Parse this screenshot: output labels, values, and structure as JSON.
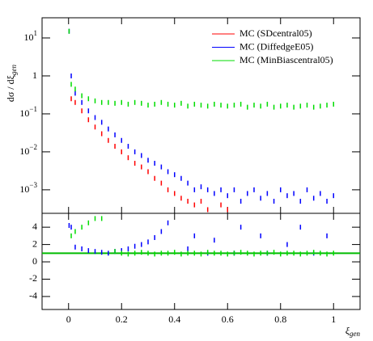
{
  "chart_data": [
    {
      "type": "scatter",
      "log_y": true,
      "y_label": {
        "text": "dσ / dξ",
        "subscript": "gen"
      },
      "legend": "top-right",
      "xlim": [
        -0.1,
        1.1
      ],
      "ylim": [
        0.00024,
        34
      ],
      "yticks": [
        {
          "value": 10,
          "label": "10",
          "exponent": "1"
        },
        {
          "value": 1,
          "label": "1"
        },
        {
          "value": 0.1,
          "label": "10",
          "exponent": "−1"
        },
        {
          "value": 0.01,
          "label": "10",
          "exponent": "−2"
        },
        {
          "value": 0.001,
          "label": "10",
          "exponent": "−3"
        }
      ],
      "x": [
        0.002,
        0.01,
        0.025,
        0.05,
        0.075,
        0.1,
        0.125,
        0.15,
        0.175,
        0.2,
        0.225,
        0.25,
        0.275,
        0.3,
        0.325,
        0.35,
        0.375,
        0.4,
        0.425,
        0.45,
        0.475,
        0.5,
        0.525,
        0.55,
        0.575,
        0.6,
        0.625,
        0.65,
        0.675,
        0.7,
        0.725,
        0.75,
        0.775,
        0.8,
        0.825,
        0.85,
        0.875,
        0.9,
        0.925,
        0.95,
        0.975,
        1.0
      ],
      "series": [
        {
          "name": "MC (SDcentral05)",
          "color": "#ff0000",
          "values": [
            null,
            0.25,
            0.2,
            0.12,
            0.07,
            0.045,
            0.03,
            0.02,
            0.014,
            0.01,
            0.007,
            0.005,
            0.004,
            0.003,
            0.002,
            0.0015,
            0.001,
            0.0008,
            0.0006,
            0.0005,
            0.0004,
            0.0005,
            0.0003,
            null,
            0.0004,
            0.0003,
            null,
            null,
            null,
            null,
            null,
            null,
            null,
            null,
            null,
            null,
            null,
            null,
            null,
            null,
            null,
            null
          ]
        },
        {
          "name": "MC (DiffedgeE05)",
          "color": "#0000ff",
          "values": [
            15,
            1.0,
            0.35,
            0.2,
            0.12,
            0.08,
            0.06,
            0.04,
            0.028,
            0.02,
            0.014,
            0.01,
            0.008,
            0.006,
            0.005,
            0.004,
            0.003,
            0.0025,
            0.002,
            0.0015,
            0.001,
            0.0012,
            0.001,
            0.0008,
            0.001,
            0.0007,
            0.001,
            0.0005,
            0.0008,
            0.001,
            0.0006,
            0.0008,
            0.0005,
            0.001,
            0.0007,
            0.0008,
            0.0005,
            0.001,
            0.0006,
            0.0008,
            0.0005,
            0.0007
          ]
        },
        {
          "name": "MC (MinBiascentral05)",
          "color": "#00dd00",
          "values": [
            15,
            0.6,
            0.45,
            0.3,
            0.25,
            0.22,
            0.2,
            0.2,
            0.19,
            0.2,
            0.18,
            0.2,
            0.19,
            0.17,
            0.18,
            0.2,
            0.18,
            0.17,
            0.19,
            0.16,
            0.18,
            0.17,
            0.16,
            0.18,
            0.17,
            0.16,
            0.17,
            0.18,
            0.15,
            0.17,
            0.16,
            0.18,
            0.15,
            0.16,
            0.17,
            0.15,
            0.16,
            0.17,
            0.15,
            0.16,
            0.17,
            0.18
          ]
        }
      ]
    },
    {
      "type": "scatter",
      "x_label": {
        "text": "ξ",
        "subscript": "gen"
      },
      "xlim": [
        -0.1,
        1.1
      ],
      "ylim": [
        -5.5,
        5.6
      ],
      "xticks": [
        0,
        0.2,
        0.4,
        0.6,
        0.8,
        1
      ],
      "yticks": [
        4,
        2,
        0,
        -2,
        -4
      ],
      "reference_line": {
        "value": 1,
        "color": "#00bb00"
      },
      "x": [
        0.002,
        0.01,
        0.025,
        0.05,
        0.075,
        0.1,
        0.125,
        0.15,
        0.175,
        0.2,
        0.225,
        0.25,
        0.275,
        0.3,
        0.325,
        0.35,
        0.375,
        0.4,
        0.425,
        0.45,
        0.475,
        0.5,
        0.525,
        0.55,
        0.575,
        0.6,
        0.625,
        0.65,
        0.675,
        0.7,
        0.725,
        0.75,
        0.775,
        0.8,
        0.825,
        0.85,
        0.875,
        0.9,
        0.925,
        0.95,
        0.975,
        1.0
      ],
      "series": [
        {
          "color": "#0000ff",
          "values": [
            4.2,
            4,
            1.7,
            1.5,
            1.3,
            1.2,
            1.1,
            1.0,
            1.2,
            1.3,
            1.5,
            1.8,
            2,
            2.3,
            2.8,
            3.5,
            4.5,
            null,
            null,
            1.5,
            3,
            null,
            1,
            2.5,
            null,
            null,
            1,
            4,
            null,
            null,
            3,
            1,
            null,
            null,
            2,
            null,
            4,
            null,
            1,
            null,
            3,
            null
          ]
        },
        {
          "color": "#00dd00",
          "values": [
            null,
            3,
            3.5,
            4,
            4.5,
            5,
            5,
            null,
            1.2,
            1.0,
            0.9,
            1.0,
            1.1,
            1.0,
            0.9,
            1.0,
            1.0,
            1.1,
            0.9,
            1.0,
            1.0,
            0.9,
            1.1,
            1.0,
            1.0,
            0.9,
            1.0,
            1.1,
            1.0,
            0.9,
            1.0,
            1.0,
            1.1,
            0.9,
            1.0,
            1.0,
            0.9,
            1.0,
            1.1,
            1.0,
            0.9,
            1.0
          ]
        }
      ]
    }
  ]
}
